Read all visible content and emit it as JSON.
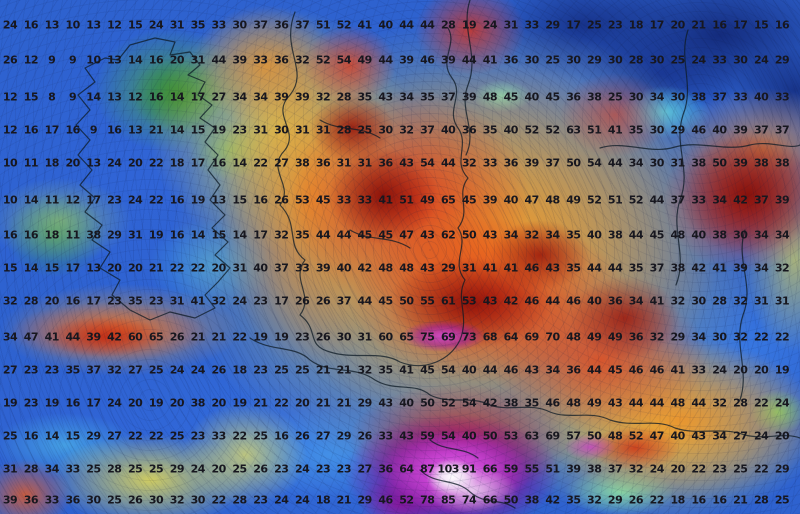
{
  "map": {
    "type": "precipitation-contour-grid",
    "rows": 15,
    "cols": 38,
    "values": [
      [
        24,
        16,
        13,
        10,
        13,
        12,
        15,
        24,
        31,
        35,
        33,
        30,
        37,
        36,
        37,
        51,
        52,
        41,
        40,
        44,
        44,
        28,
        19,
        24,
        31,
        33,
        29,
        17,
        25,
        23,
        18,
        17,
        20,
        21,
        16,
        17,
        15,
        16
      ],
      [
        26,
        12,
        9,
        9,
        10,
        13,
        14,
        16,
        20,
        31,
        44,
        39,
        33,
        36,
        32,
        52,
        54,
        49,
        44,
        39,
        46,
        39,
        44,
        41,
        36,
        30,
        25,
        30,
        29,
        30,
        28,
        30,
        25,
        24,
        33,
        30,
        24,
        29
      ],
      [
        12,
        15,
        8,
        9,
        14,
        13,
        12,
        16,
        14,
        17,
        27,
        34,
        34,
        39,
        39,
        32,
        28,
        35,
        43,
        34,
        35,
        37,
        39,
        48,
        45,
        40,
        45,
        36,
        38,
        25,
        30,
        34,
        30,
        38,
        37,
        33,
        40,
        33
      ],
      [
        12,
        16,
        17,
        16,
        9,
        16,
        13,
        21,
        14,
        15,
        19,
        23,
        31,
        30,
        31,
        31,
        28,
        25,
        30,
        32,
        37,
        40,
        36,
        35,
        40,
        52,
        52,
        63,
        51,
        41,
        35,
        30,
        29,
        46,
        40,
        39,
        37,
        37
      ],
      [
        10,
        11,
        18,
        20,
        13,
        24,
        20,
        22,
        18,
        17,
        16,
        14,
        22,
        27,
        38,
        36,
        31,
        31,
        36,
        43,
        54,
        44,
        32,
        33,
        36,
        39,
        37,
        50,
        54,
        44,
        34,
        30,
        31,
        38,
        50,
        39,
        38,
        38
      ],
      [
        10,
        14,
        11,
        12,
        17,
        23,
        24,
        22,
        16,
        19,
        13,
        15,
        16,
        26,
        53,
        45,
        33,
        33,
        41,
        51,
        49,
        65,
        45,
        39,
        40,
        47,
        48,
        49,
        52,
        51,
        52,
        44,
        37,
        33,
        34,
        42,
        37,
        39
      ],
      [
        16,
        16,
        18,
        11,
        38,
        29,
        31,
        19,
        16,
        14,
        15,
        14,
        17,
        32,
        35,
        44,
        44,
        45,
        45,
        47,
        43,
        62,
        50,
        43,
        34,
        32,
        34,
        35,
        40,
        38,
        44,
        45,
        48,
        40,
        38,
        30,
        34,
        34
      ],
      [
        15,
        14,
        15,
        17,
        13,
        20,
        20,
        21,
        22,
        22,
        20,
        31,
        40,
        37,
        33,
        39,
        40,
        42,
        48,
        48,
        43,
        29,
        31,
        41,
        41,
        46,
        43,
        35,
        44,
        44,
        35,
        37,
        38,
        42,
        41,
        39,
        34,
        32
      ],
      [
        32,
        28,
        20,
        16,
        17,
        23,
        35,
        23,
        31,
        41,
        32,
        24,
        23,
        17,
        26,
        26,
        37,
        44,
        45,
        50,
        55,
        61,
        53,
        43,
        42,
        46,
        44,
        46,
        40,
        36,
        34,
        41,
        32,
        30,
        28,
        32,
        31,
        31
      ],
      [
        34,
        47,
        41,
        44,
        39,
        42,
        60,
        65,
        26,
        21,
        21,
        22,
        19,
        19,
        23,
        26,
        30,
        31,
        60,
        65,
        75,
        69,
        73,
        68,
        64,
        69,
        70,
        48,
        49,
        49,
        36,
        32,
        29,
        34,
        30,
        32,
        22,
        22
      ],
      [
        27,
        23,
        23,
        35,
        37,
        32,
        27,
        25,
        24,
        24,
        26,
        18,
        23,
        25,
        25,
        21,
        21,
        32,
        35,
        41,
        45,
        54,
        40,
        44,
        46,
        43,
        34,
        36,
        44,
        45,
        46,
        46,
        41,
        33,
        24,
        20,
        20,
        19
      ],
      [
        19,
        23,
        19,
        16,
        17,
        24,
        20,
        19,
        20,
        38,
        20,
        19,
        21,
        22,
        20,
        21,
        21,
        29,
        43,
        40,
        50,
        52,
        54,
        42,
        38,
        35,
        46,
        48,
        49,
        43,
        44,
        44,
        48,
        44,
        32,
        28,
        22,
        24
      ],
      [
        25,
        16,
        14,
        15,
        29,
        27,
        22,
        22,
        25,
        23,
        33,
        22,
        25,
        16,
        26,
        27,
        29,
        26,
        33,
        43,
        59,
        54,
        40,
        50,
        53,
        63,
        69,
        57,
        50,
        48,
        52,
        47,
        40,
        43,
        34,
        27,
        24,
        20
      ],
      [
        31,
        28,
        34,
        33,
        25,
        28,
        25,
        25,
        29,
        24,
        20,
        25,
        26,
        23,
        24,
        23,
        23,
        27,
        36,
        64,
        87,
        103,
        91,
        66,
        59,
        55,
        51,
        39,
        38,
        37,
        32,
        24,
        20,
        22,
        23,
        25,
        22,
        29
      ],
      [
        39,
        36,
        33,
        36,
        30,
        25,
        26,
        30,
        32,
        30,
        22,
        28,
        23,
        24,
        24,
        18,
        21,
        29,
        46,
        52,
        78,
        85,
        74,
        66,
        50,
        38,
        42,
        35,
        32,
        29,
        26,
        22,
        18,
        16,
        16,
        21,
        28,
        25
      ]
    ]
  },
  "palette": {
    "base_blue": "#2e62cf",
    "navy": "#15307e",
    "cyan": "#54c8e6",
    "green": "#3f9c46",
    "yellow": "#f6e23c",
    "orange": "#f38b20",
    "red": "#dd3016",
    "dark_red": "#8c0f06",
    "magenta": "#d653da",
    "purple": "#8d0f96",
    "extreme_white": "#ffffff",
    "value_text": "#17171f",
    "coastline": "#0d1b26"
  }
}
